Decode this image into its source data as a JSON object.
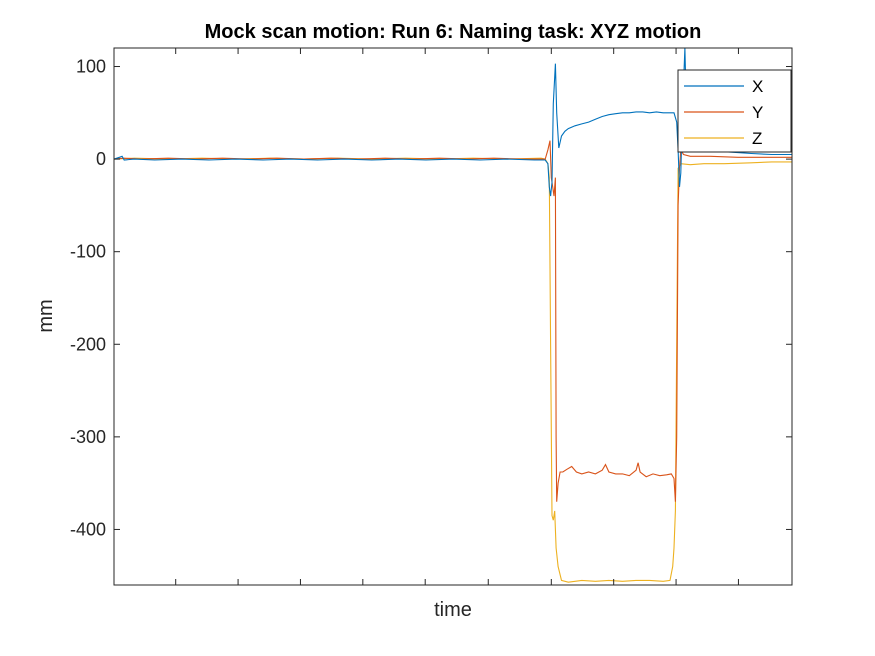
{
  "chart_data": {
    "type": "line",
    "title": "Mock scan motion: Run 6: Naming task: XYZ motion",
    "xlabel": "time",
    "ylabel": "mm",
    "xlim": [
      0,
      1000
    ],
    "ylim": [
      -460,
      120
    ],
    "yticks": [
      100,
      0,
      -100,
      -200,
      -300,
      -400
    ],
    "ytick_labels": [
      "100",
      "0",
      "-100",
      "-200",
      "-300",
      "-400"
    ],
    "xticks": [
      0,
      91,
      183,
      275,
      367,
      459,
      552,
      645,
      737,
      829,
      921,
      1000
    ],
    "xtick_labels": [],
    "grid": false,
    "legend_position": "top-right",
    "series": [
      {
        "name": "X",
        "color": "#0072BD",
        "points": [
          [
            0,
            0
          ],
          [
            8,
            2
          ],
          [
            12,
            3
          ],
          [
            15,
            -1
          ],
          [
            30,
            0
          ],
          [
            60,
            -1
          ],
          [
            100,
            0
          ],
          [
            140,
            -1
          ],
          [
            180,
            0
          ],
          [
            220,
            -1
          ],
          [
            260,
            0
          ],
          [
            300,
            -1
          ],
          [
            340,
            0
          ],
          [
            380,
            -1
          ],
          [
            420,
            0
          ],
          [
            460,
            -1
          ],
          [
            500,
            0
          ],
          [
            540,
            -1
          ],
          [
            580,
            0
          ],
          [
            620,
            -1
          ],
          [
            636,
            -1
          ],
          [
            640,
            -5
          ],
          [
            642,
            -30
          ],
          [
            644,
            -40
          ],
          [
            646,
            -25
          ],
          [
            648,
            60
          ],
          [
            651,
            103
          ],
          [
            653,
            50
          ],
          [
            656,
            12
          ],
          [
            660,
            25
          ],
          [
            665,
            30
          ],
          [
            670,
            33
          ],
          [
            680,
            36
          ],
          [
            690,
            38
          ],
          [
            700,
            40
          ],
          [
            710,
            43
          ],
          [
            720,
            46
          ],
          [
            730,
            48
          ],
          [
            740,
            49
          ],
          [
            750,
            50
          ],
          [
            760,
            50
          ],
          [
            770,
            51
          ],
          [
            780,
            51
          ],
          [
            790,
            50
          ],
          [
            800,
            51
          ],
          [
            810,
            50
          ],
          [
            820,
            50
          ],
          [
            826,
            50
          ],
          [
            830,
            40
          ],
          [
            832,
            10
          ],
          [
            834,
            -30
          ],
          [
            836,
            -15
          ],
          [
            838,
            40
          ],
          [
            840,
            80
          ],
          [
            842,
            120
          ],
          [
            844,
            60
          ],
          [
            850,
            20
          ],
          [
            870,
            12
          ],
          [
            900,
            8
          ],
          [
            940,
            6
          ],
          [
            970,
            5
          ],
          [
            1000,
            5
          ]
        ]
      },
      {
        "name": "Y",
        "color": "#D95319",
        "points": [
          [
            0,
            0
          ],
          [
            15,
            1
          ],
          [
            40,
            0
          ],
          [
            80,
            1
          ],
          [
            120,
            0
          ],
          [
            160,
            1
          ],
          [
            200,
            0
          ],
          [
            240,
            1
          ],
          [
            280,
            0
          ],
          [
            320,
            1
          ],
          [
            360,
            0
          ],
          [
            400,
            1
          ],
          [
            440,
            0
          ],
          [
            480,
            1
          ],
          [
            520,
            0
          ],
          [
            560,
            1
          ],
          [
            600,
            0
          ],
          [
            636,
            0
          ],
          [
            640,
            10
          ],
          [
            643,
            20
          ],
          [
            645,
            -20
          ],
          [
            647,
            -30
          ],
          [
            649,
            -40
          ],
          [
            651,
            -20
          ],
          [
            652,
            -300
          ],
          [
            653,
            -370
          ],
          [
            655,
            -350
          ],
          [
            658,
            -338
          ],
          [
            662,
            -338
          ],
          [
            668,
            -335
          ],
          [
            675,
            -332
          ],
          [
            682,
            -338
          ],
          [
            690,
            -340
          ],
          [
            700,
            -338
          ],
          [
            710,
            -340
          ],
          [
            720,
            -336
          ],
          [
            725,
            -330
          ],
          [
            730,
            -338
          ],
          [
            740,
            -340
          ],
          [
            750,
            -340
          ],
          [
            760,
            -342
          ],
          [
            770,
            -336
          ],
          [
            773,
            -328
          ],
          [
            776,
            -338
          ],
          [
            785,
            -343
          ],
          [
            795,
            -340
          ],
          [
            805,
            -342
          ],
          [
            815,
            -341
          ],
          [
            822,
            -340
          ],
          [
            826,
            -345
          ],
          [
            828,
            -370
          ],
          [
            830,
            -300
          ],
          [
            832,
            -50
          ],
          [
            834,
            -10
          ],
          [
            836,
            10
          ],
          [
            840,
            5
          ],
          [
            850,
            3
          ],
          [
            880,
            3
          ],
          [
            920,
            2
          ],
          [
            960,
            2
          ],
          [
            1000,
            2
          ]
        ]
      },
      {
        "name": "Z",
        "color": "#EDB120",
        "points": [
          [
            0,
            0
          ],
          [
            30,
            1
          ],
          [
            80,
            0
          ],
          [
            130,
            1
          ],
          [
            180,
            0
          ],
          [
            230,
            1
          ],
          [
            280,
            0
          ],
          [
            330,
            1
          ],
          [
            380,
            0
          ],
          [
            430,
            1
          ],
          [
            480,
            0
          ],
          [
            530,
            1
          ],
          [
            580,
            0
          ],
          [
            630,
            1
          ],
          [
            636,
            0
          ],
          [
            640,
            -5
          ],
          [
            642,
            -20
          ],
          [
            644,
            -200
          ],
          [
            646,
            -385
          ],
          [
            648,
            -390
          ],
          [
            650,
            -380
          ],
          [
            652,
            -420
          ],
          [
            655,
            -440
          ],
          [
            660,
            -455
          ],
          [
            670,
            -457
          ],
          [
            690,
            -455
          ],
          [
            710,
            -456
          ],
          [
            730,
            -455
          ],
          [
            750,
            -456
          ],
          [
            770,
            -455
          ],
          [
            790,
            -455
          ],
          [
            810,
            -456
          ],
          [
            820,
            -455
          ],
          [
            824,
            -440
          ],
          [
            826,
            -420
          ],
          [
            828,
            -380
          ],
          [
            830,
            -200
          ],
          [
            832,
            -10
          ],
          [
            836,
            -5
          ],
          [
            850,
            -6
          ],
          [
            870,
            -5
          ],
          [
            900,
            -5
          ],
          [
            940,
            -4
          ],
          [
            970,
            -3
          ],
          [
            1000,
            -3
          ]
        ]
      }
    ]
  }
}
